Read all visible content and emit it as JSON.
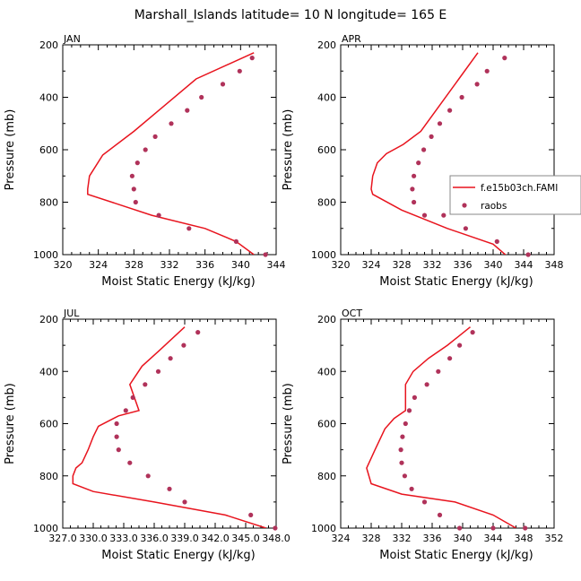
{
  "figure": {
    "title": "Marshall_Islands  latitude= 10 N longitude= 165 E",
    "xlabel": "Moist Static Energy (kJ/kg)",
    "ylabel": "Pressure (mb)"
  },
  "legend": {
    "placement": "right of APR panel",
    "entries": [
      {
        "label": "f.e15b03ch.FAMI",
        "style": "line",
        "color": "#e8141e"
      },
      {
        "label": "raobs",
        "style": "marker",
        "color": "#b0325a"
      }
    ]
  },
  "colors": {
    "model_line": "#e8141e",
    "raobs_marker": "#b0325a"
  },
  "chart_data": [
    {
      "type": "line",
      "title": "JAN",
      "xlabel": "Moist Static Energy (kJ/kg)",
      "ylabel": "Pressure (mb)",
      "xlim": [
        320,
        344
      ],
      "ylim": [
        1000,
        200
      ],
      "xticks": [
        "320",
        "324",
        "328",
        "332",
        "336",
        "340",
        "344"
      ],
      "yticks": [
        "200",
        "400",
        "600",
        "800",
        "1000"
      ],
      "series": [
        {
          "name": "f.e15b03ch.FAMI",
          "kind": "line",
          "x": [
            341.5,
            335.0,
            331.5,
            328.0,
            324.5,
            323.0,
            322.8,
            322.8,
            330.0,
            336.0,
            339.5,
            341.5
          ],
          "y": [
            230,
            330,
            430,
            530,
            620,
            700,
            750,
            770,
            850,
            900,
            950,
            1000
          ]
        },
        {
          "name": "raobs",
          "kind": "scatter",
          "x": [
            341.3,
            339.9,
            338.0,
            335.6,
            334.0,
            332.2,
            330.4,
            329.3,
            328.4,
            327.8,
            328.0,
            328.2,
            330.8,
            334.2,
            339.5,
            342.8
          ],
          "y": [
            250,
            300,
            350,
            400,
            450,
            500,
            550,
            600,
            650,
            700,
            750,
            800,
            850,
            900,
            950,
            1000
          ]
        }
      ]
    },
    {
      "type": "line",
      "title": "APR",
      "xlabel": "Moist Static Energy (kJ/kg)",
      "ylabel": "Pressure (mb)",
      "xlim": [
        320,
        348
      ],
      "ylim": [
        1000,
        200
      ],
      "xticks": [
        "320",
        "324",
        "328",
        "332",
        "336",
        "340",
        "344",
        "348"
      ],
      "yticks": [
        "200",
        "400",
        "600",
        "800",
        "1000"
      ],
      "series": [
        {
          "name": "f.e15b03ch.FAMI",
          "kind": "line",
          "x": [
            338.0,
            335.5,
            333.0,
            330.5,
            328.2,
            326.0,
            324.8,
            324.2,
            324.0,
            324.2,
            328.0,
            334.0,
            340.0,
            342.0
          ],
          "y": [
            230,
            330,
            430,
            530,
            580,
            615,
            650,
            700,
            750,
            770,
            830,
            900,
            960,
            1010
          ]
        },
        {
          "name": "raobs",
          "kind": "scatter",
          "x": [
            341.5,
            339.2,
            337.9,
            335.9,
            334.3,
            333.0,
            331.9,
            330.9,
            330.2,
            329.6,
            329.4,
            329.6,
            331.0,
            333.5,
            336.4,
            340.5,
            344.6
          ],
          "y": [
            250,
            300,
            350,
            400,
            450,
            500,
            550,
            600,
            650,
            700,
            750,
            800,
            850,
            850,
            900,
            950,
            1000
          ]
        }
      ]
    },
    {
      "type": "line",
      "title": "JUL",
      "xlabel": "Moist Static Energy (kJ/kg)",
      "ylabel": "Pressure (mb)",
      "xlim": [
        327.0,
        348.0
      ],
      "ylim": [
        1000,
        200
      ],
      "xticks": [
        "327.0",
        "330.0",
        "333.0",
        "336.0",
        "339.0",
        "342.0",
        "345.0",
        "348.0"
      ],
      "yticks": [
        "200",
        "400",
        "600",
        "800",
        "1000"
      ],
      "series": [
        {
          "name": "f.e15b03ch.FAMI",
          "kind": "line",
          "x": [
            339.0,
            336.5,
            334.8,
            333.6,
            334.5,
            332.5,
            330.5,
            330.0,
            329.5,
            328.9,
            328.3,
            328.0,
            328.0,
            330.0,
            336.0,
            343.0,
            347.0
          ],
          "y": [
            230,
            320,
            380,
            450,
            550,
            570,
            610,
            650,
            700,
            750,
            770,
            800,
            830,
            860,
            900,
            950,
            1000
          ]
        },
        {
          "name": "raobs",
          "kind": "scatter",
          "x": [
            340.3,
            338.9,
            337.6,
            336.4,
            335.1,
            333.9,
            333.2,
            332.3,
            332.3,
            332.5,
            333.6,
            335.4,
            337.5,
            339.0,
            345.5,
            347.9
          ],
          "y": [
            250,
            300,
            350,
            400,
            450,
            500,
            550,
            600,
            650,
            700,
            750,
            800,
            850,
            900,
            950,
            1000
          ]
        }
      ]
    },
    {
      "type": "line",
      "title": "OCT",
      "xlabel": "Moist Static Energy (kJ/kg)",
      "ylabel": "Pressure (mb)",
      "xlim": [
        324,
        352
      ],
      "ylim": [
        1000,
        200
      ],
      "xticks": [
        "324",
        "328",
        "332",
        "336",
        "340",
        "344",
        "348",
        "352"
      ],
      "yticks": [
        "200",
        "400",
        "600",
        "800",
        "1000"
      ],
      "series": [
        {
          "name": "f.e15b03ch.FAMI",
          "kind": "line",
          "x": [
            341.0,
            338.0,
            335.5,
            333.5,
            332.5,
            332.5,
            332.5,
            331.0,
            329.8,
            328.5,
            327.4,
            328.0,
            332.0,
            339.0,
            344.0,
            347.0
          ],
          "y": [
            230,
            300,
            350,
            400,
            450,
            500,
            550,
            580,
            620,
            700,
            770,
            830,
            870,
            900,
            950,
            1000
          ]
        },
        {
          "name": "raobs",
          "kind": "scatter",
          "x": [
            341.3,
            339.6,
            338.3,
            336.8,
            335.3,
            333.7,
            333.0,
            332.5,
            332.1,
            331.9,
            332.0,
            332.4,
            333.3,
            335.0,
            337.0,
            339.6,
            344.0,
            348.2
          ],
          "y": [
            250,
            300,
            350,
            400,
            450,
            500,
            550,
            600,
            650,
            700,
            750,
            800,
            850,
            900,
            950,
            1000,
            1000,
            1000
          ]
        }
      ]
    }
  ]
}
